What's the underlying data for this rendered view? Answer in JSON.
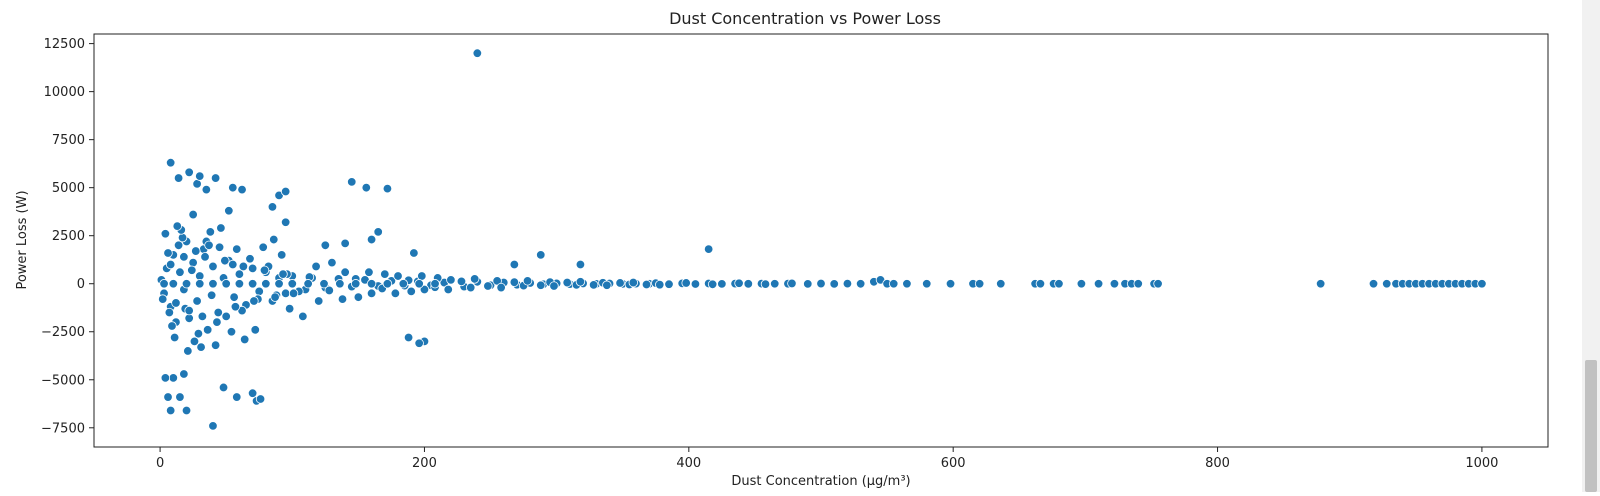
{
  "chart_data": {
    "type": "scatter",
    "title": "Dust Concentration vs Power Loss",
    "xlabel": "Dust Concentration (µg/m³)",
    "ylabel": "Power Loss (W)",
    "xlim": [
      -50,
      1050
    ],
    "ylim": [
      -8500,
      13000
    ],
    "xticks": [
      0,
      200,
      400,
      600,
      800,
      1000
    ],
    "xtick_labels": [
      "0",
      "200",
      "400",
      "600",
      "800",
      "1000"
    ],
    "yticks": [
      -7500,
      -5000,
      -2500,
      0,
      2500,
      5000,
      7500,
      10000,
      12500
    ],
    "ytick_labels": [
      "−7500",
      "−5000",
      "−2500",
      "0",
      "2500",
      "5000",
      "7500",
      "10000",
      "12500"
    ],
    "grid": false,
    "legend": "none",
    "point_color": "#1f77b4",
    "point_edge_color": "#ffffff",
    "points": {
      "x": [
        1,
        3,
        5,
        8,
        10,
        12,
        15,
        18,
        20,
        22,
        25,
        28,
        30,
        33,
        36,
        40,
        44,
        48,
        52,
        56,
        60,
        65,
        70,
        75,
        80,
        85,
        90,
        95,
        100,
        110,
        2,
        6,
        9,
        14,
        19,
        24,
        29,
        34,
        39,
        45,
        50,
        55,
        62,
        68,
        74,
        82,
        88,
        96,
        105,
        115,
        125,
        135,
        145,
        155,
        165,
        175,
        185,
        195,
        205,
        215,
        4,
        11,
        17,
        26,
        35,
        42,
        58,
        72,
        92,
        120,
        140,
        160,
        180,
        200,
        220,
        230,
        240,
        250,
        260,
        270,
        280,
        290,
        300,
        310,
        320,
        330,
        340,
        350,
        360,
        370,
        7,
        16,
        31,
        46,
        64,
        86,
        108,
        130,
        150,
        170,
        190,
        210,
        235,
        255,
        275,
        295,
        315,
        335,
        355,
        375,
        385,
        395,
        405,
        415,
        425,
        435,
        445,
        455,
        465,
        475,
        13,
        21,
        38,
        54,
        78,
        98,
        118,
        138,
        158,
        178,
        198,
        218,
        238,
        258,
        278,
        298,
        318,
        338,
        358,
        378,
        398,
        418,
        438,
        458,
        478,
        490,
        500,
        510,
        520,
        530,
        8,
        12,
        18,
        22,
        27,
        32,
        37,
        43,
        49,
        57,
        63,
        71,
        79,
        87,
        93,
        101,
        113,
        128,
        148,
        168,
        188,
        208,
        228,
        248,
        268,
        288,
        308,
        328,
        348,
        368,
        3,
        10,
        20,
        30,
        40,
        50,
        60,
        70,
        80,
        90,
        100,
        112,
        124,
        136,
        148,
        160,
        172,
        184,
        196,
        208,
        540,
        545,
        550,
        555,
        565,
        580,
        598,
        615,
        620,
        636,
        662,
        666,
        676,
        680,
        697,
        710,
        722,
        730,
        735,
        740,
        752,
        755,
        878,
        918,
        928,
        935,
        940,
        945,
        950,
        955,
        960,
        965,
        970,
        975,
        980,
        985,
        990,
        995,
        1000,
        240,
        8,
        14,
        22,
        28,
        35,
        55,
        62,
        90,
        95,
        145,
        156,
        172,
        10,
        20,
        48,
        70,
        15,
        40,
        4,
        6,
        8,
        18,
        58,
        73,
        76,
        52,
        25,
        95,
        268,
        288,
        415,
        318,
        165,
        160,
        125,
        140,
        192,
        200,
        188,
        196,
        30,
        42,
        85
      ],
      "y": [
        200,
        -500,
        800,
        -1200,
        1500,
        -2000,
        600,
        -300,
        2200,
        -1800,
        1100,
        -900,
        400,
        1800,
        -2400,
        900,
        -1500,
        300,
        1200,
        -700,
        500,
        -1100,
        800,
        -400,
        600,
        -900,
        300,
        -500,
        400,
        -300,
        -800,
        1600,
        -2200,
        2000,
        -1300,
        700,
        -2600,
        1400,
        -600,
        1900,
        -1700,
        1000,
        -1400,
        1300,
        -800,
        900,
        -600,
        500,
        -400,
        300,
        -200,
        250,
        -150,
        200,
        -120,
        150,
        -100,
        120,
        -80,
        60,
        2600,
        -2800,
        2400,
        -3000,
        2200,
        -3200,
        1800,
        -2400,
        1500,
        -900,
        600,
        -500,
        400,
        -300,
        200,
        -150,
        100,
        -80,
        60,
        -50,
        40,
        -30,
        20,
        -20,
        15,
        -10,
        10,
        -8,
        5,
        -5,
        -1500,
        2800,
        -3300,
        2900,
        -2900,
        2300,
        -1700,
        1100,
        -700,
        500,
        -400,
        300,
        -200,
        150,
        -100,
        80,
        -60,
        50,
        -40,
        30,
        -25,
        20,
        -15,
        10,
        -8,
        6,
        -5,
        4,
        -3,
        2,
        3000,
        -3500,
        2700,
        -2500,
        1900,
        -1300,
        900,
        -800,
        600,
        -500,
        400,
        -300,
        250,
        -200,
        150,
        -120,
        100,
        -80,
        60,
        -50,
        40,
        -30,
        25,
        -20,
        15,
        -10,
        8,
        -6,
        5,
        -4,
        1000,
        -1000,
        1400,
        -1400,
        1700,
        -1700,
        2000,
        -2000,
        1200,
        -1200,
        900,
        -900,
        700,
        -700,
        500,
        -500,
        350,
        -350,
        250,
        -250,
        180,
        -180,
        120,
        -120,
        80,
        -80,
        60,
        -60,
        40,
        -40,
        0,
        0,
        0,
        0,
        0,
        0,
        0,
        0,
        0,
        0,
        0,
        0,
        0,
        0,
        0,
        0,
        0,
        0,
        0,
        0,
        100,
        200,
        0,
        0,
        0,
        0,
        0,
        0,
        0,
        0,
        0,
        0,
        0,
        0,
        0,
        0,
        0,
        0,
        0,
        0,
        0,
        0,
        0,
        0,
        0,
        0,
        0,
        0,
        0,
        0,
        0,
        0,
        0,
        0,
        0,
        0,
        0,
        0,
        0,
        12000,
        6300,
        5500,
        5800,
        5200,
        4900,
        5000,
        4900,
        4600,
        4800,
        5300,
        5000,
        4950,
        -4900,
        -6600,
        -5400,
        -5700,
        -5900,
        -7400,
        -4900,
        -5900,
        -6600,
        -4700,
        -5900,
        -6100,
        -6000,
        3800,
        3600,
        3200,
        1000,
        1500,
        1800,
        1000,
        2700,
        2300,
        2000,
        2100,
        1600,
        -3000,
        -2800,
        -3100,
        5600,
        5500,
        4000
      ]
    }
  }
}
